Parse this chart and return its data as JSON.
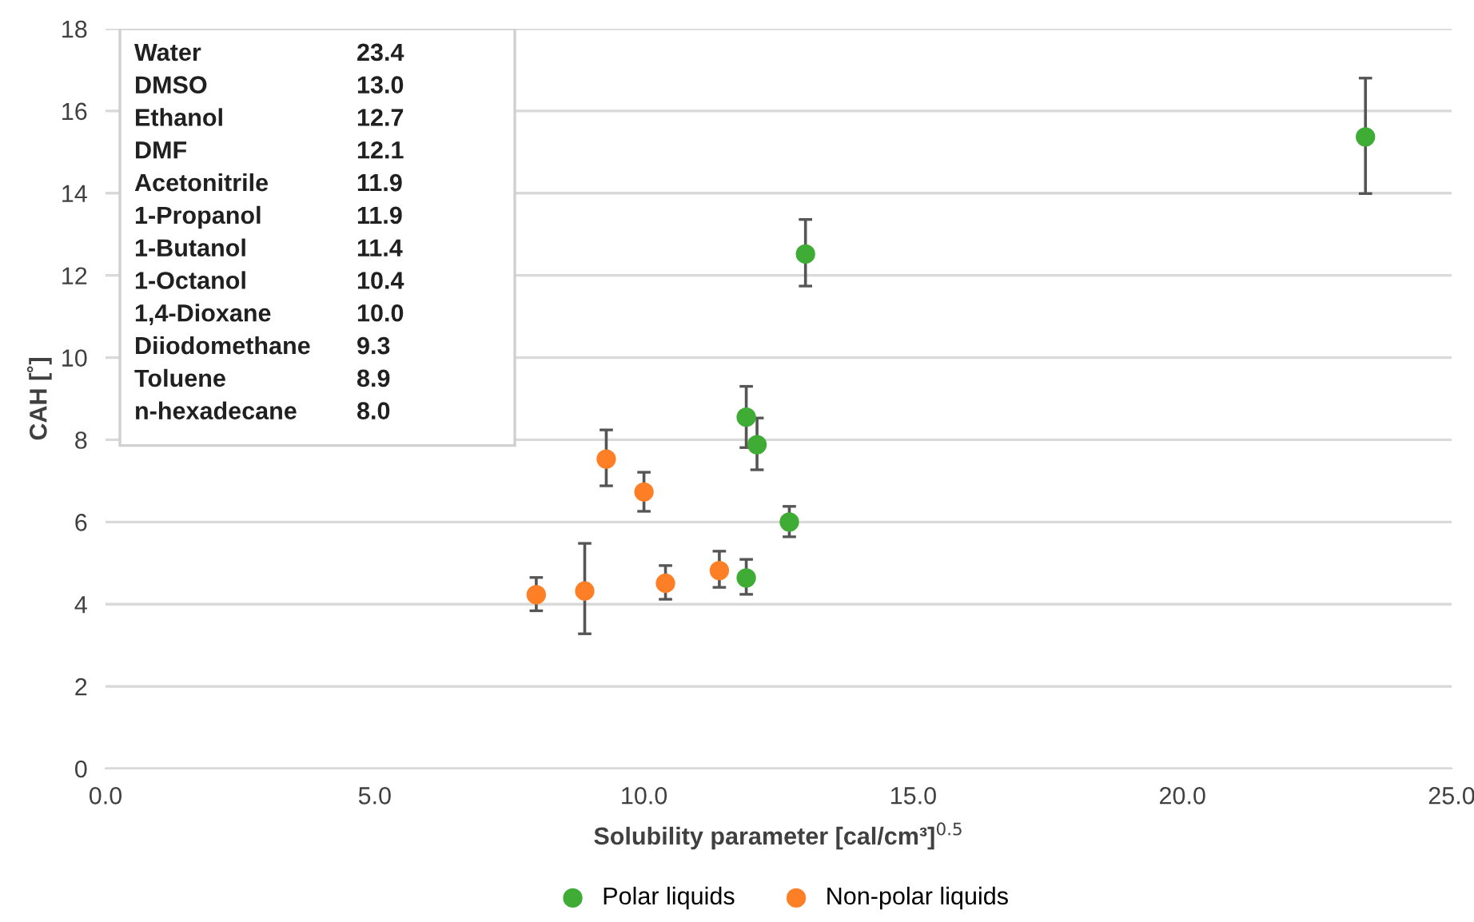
{
  "chart_data": {
    "type": "scatter",
    "xlabel": "Solubility parameter [cal/cm³]$^{0.5}$",
    "ylabel": "CAH [˚]",
    "xlim": [
      0,
      25
    ],
    "xticks": [
      {
        "value": 0,
        "label": "0.0"
      },
      {
        "value": 5,
        "label": "5.0"
      },
      {
        "value": 10,
        "label": "10.0"
      },
      {
        "value": 15,
        "label": "15.0"
      },
      {
        "value": 20,
        "label": "20.0"
      },
      {
        "value": 25,
        "label": "25.0"
      }
    ],
    "ylim": [
      0,
      18
    ],
    "yticks": [
      0,
      2,
      4,
      6,
      8,
      10,
      12,
      14,
      16,
      18
    ],
    "grid": "y",
    "legend": "bottom",
    "marker": "circle",
    "series": [
      {
        "name": "Polar liquids",
        "color": "#3eac35",
        "x": [
          23.4,
          13.0,
          12.7,
          12.1,
          11.9,
          11.9
        ],
        "values": [
          15.37,
          12.52,
          6.0,
          7.88,
          8.55,
          4.64
        ],
        "errors": [
          [
            13.99,
            16.8
          ],
          [
            11.74,
            13.36
          ],
          [
            5.64,
            6.38
          ],
          [
            7.27,
            8.53
          ],
          [
            7.81,
            9.3
          ],
          [
            4.24,
            5.09
          ]
        ]
      },
      {
        "name": "Non-polar liquids",
        "color": "#ff7f27",
        "x": [
          11.4,
          10.4,
          10.0,
          9.3,
          8.9,
          8.0
        ],
        "values": [
          4.82,
          4.51,
          6.73,
          7.53,
          4.32,
          4.23
        ],
        "errors": [
          [
            4.41,
            5.29
          ],
          [
            4.12,
            4.94
          ],
          [
            6.26,
            7.21
          ],
          [
            6.88,
            8.24
          ],
          [
            3.28,
            5.48
          ],
          [
            3.84,
            4.65
          ]
        ]
      }
    ],
    "annotations": [
      "Water\t23.4",
      "DMSO\t13.0",
      "Ethanol\t12.7",
      "DMF\t12.1",
      "Acetonitrile\t11.9",
      "1-Propanol\t11.9",
      "1-Butanol\t11.4",
      "1-Octanol\t10.4",
      "1,4-Dioxane\t10.0",
      "Diiodomethane\t9.3",
      "Toluene\t8.9",
      "n-hexadecane\t8.0"
    ]
  }
}
